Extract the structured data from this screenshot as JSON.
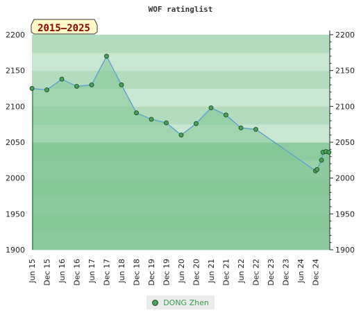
{
  "chart_data": {
    "type": "area",
    "title": "WOF ratinglist",
    "period_badge": "2015–2025",
    "xlabel": "",
    "ylabel": "",
    "ylim": [
      1900,
      2200
    ],
    "yticks": [
      1900,
      1950,
      2000,
      2050,
      2100,
      2150,
      2200
    ],
    "xticks": [
      "Jun 15",
      "Dec 15",
      "Jun 16",
      "Dec 16",
      "Jun 17",
      "Dec 17",
      "Jun 18",
      "Dec 18",
      "Dec 19",
      "Dec 19",
      "Jun 20",
      "Dec 20",
      "Jun 21",
      "Dec 21",
      "Jun 22",
      "Dec 22",
      "Dec 23",
      "Dec 23",
      "Jun 24",
      "Dec 24"
    ],
    "grid": true,
    "legend_position": "bottom",
    "series": [
      {
        "name": "DONG Zhen",
        "x": [
          0,
          1,
          2,
          3,
          4,
          5,
          6,
          7,
          8,
          9,
          10,
          11,
          12,
          13,
          14,
          15,
          19,
          19.1,
          19.4,
          19.5,
          19.7,
          19.9
        ],
        "values": [
          2125,
          2123,
          2138,
          2128,
          2130,
          2170,
          2130,
          2091,
          2082,
          2077,
          2060,
          2076,
          2098,
          2088,
          2070,
          2068,
          2010,
          2012,
          2025,
          2036,
          2037,
          2036
        ]
      }
    ]
  },
  "colors": {
    "series_line": "#5a9ecf",
    "series_fill": "#7fc493",
    "marker_fill": "#4aa05a",
    "marker_stroke": "#1d4d25"
  }
}
